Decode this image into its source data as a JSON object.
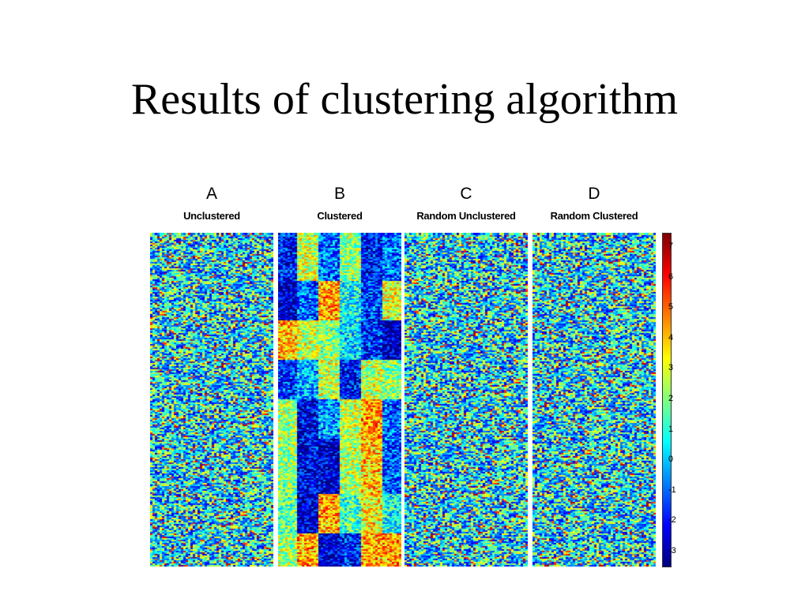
{
  "slide": {
    "title": "Results of clustering algorithm"
  },
  "chart_data": {
    "type": "heatmap",
    "panels": [
      {
        "letter": "A",
        "label": "Unclustered",
        "pattern": "random"
      },
      {
        "letter": "B",
        "label": "Clustered",
        "pattern": "clustered"
      },
      {
        "letter": "C",
        "label": "Random Unclustered",
        "pattern": "random"
      },
      {
        "letter": "D",
        "label": "Random Clustered",
        "pattern": "random"
      }
    ],
    "colorbar": {
      "range": [
        -3,
        7
      ],
      "ticks": [
        "7",
        "6",
        "5",
        "4",
        "3",
        "2",
        "1",
        "0",
        "-1",
        "-2",
        "-3"
      ],
      "colors": [
        "#00007f",
        "#0000ff",
        "#007fff",
        "#00ffff",
        "#7fff7f",
        "#ffff00",
        "#ff7f00",
        "#ff0000",
        "#7f0000"
      ]
    }
  }
}
